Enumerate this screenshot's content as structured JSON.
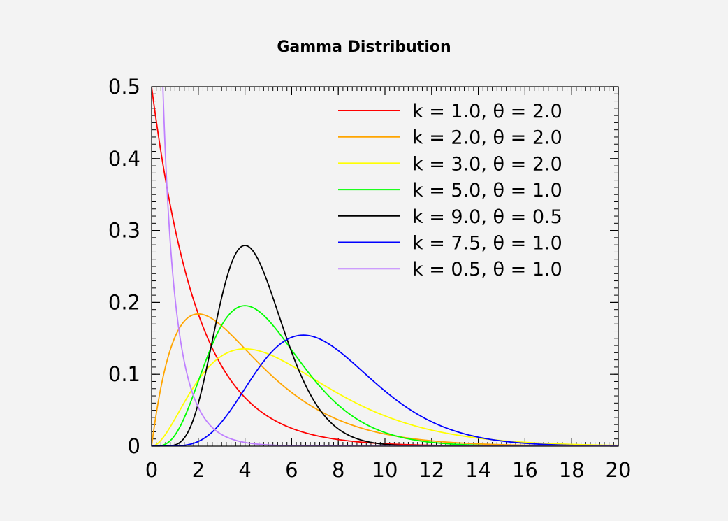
{
  "chart_data": {
    "type": "line",
    "title": "Gamma Distribution",
    "xlabel": "",
    "ylabel": "",
    "xlim": [
      0,
      20
    ],
    "ylim": [
      0,
      0.5
    ],
    "x_ticks": [
      "0",
      "2",
      "4",
      "6",
      "8",
      "10",
      "12",
      "14",
      "16",
      "18",
      "20"
    ],
    "y_ticks": [
      "0",
      "0.1",
      "0.2",
      "0.3",
      "0.4",
      "0.5"
    ],
    "grid": false,
    "legend_position": "top-right",
    "minor_ticks": true,
    "series": [
      {
        "name": "k = 1.0, θ = 2.0",
        "k": 1.0,
        "theta": 2.0,
        "color": "#ff0000"
      },
      {
        "name": "k = 2.0, θ = 2.0",
        "k": 2.0,
        "theta": 2.0,
        "color": "#ffa500"
      },
      {
        "name": "k = 3.0, θ = 2.0",
        "k": 3.0,
        "theta": 2.0,
        "color": "#ffff00"
      },
      {
        "name": "k = 5.0, θ = 1.0",
        "k": 5.0,
        "theta": 1.0,
        "color": "#00ff00"
      },
      {
        "name": "k = 9.0, θ = 0.5",
        "k": 9.0,
        "theta": 0.5,
        "color": "#000000"
      },
      {
        "name": "k = 7.5, θ = 1.0",
        "k": 7.5,
        "theta": 1.0,
        "color": "#0000ff"
      },
      {
        "name": "k = 0.5, θ = 1.0",
        "k": 0.5,
        "theta": 1.0,
        "color": "#bf80ff"
      }
    ]
  }
}
